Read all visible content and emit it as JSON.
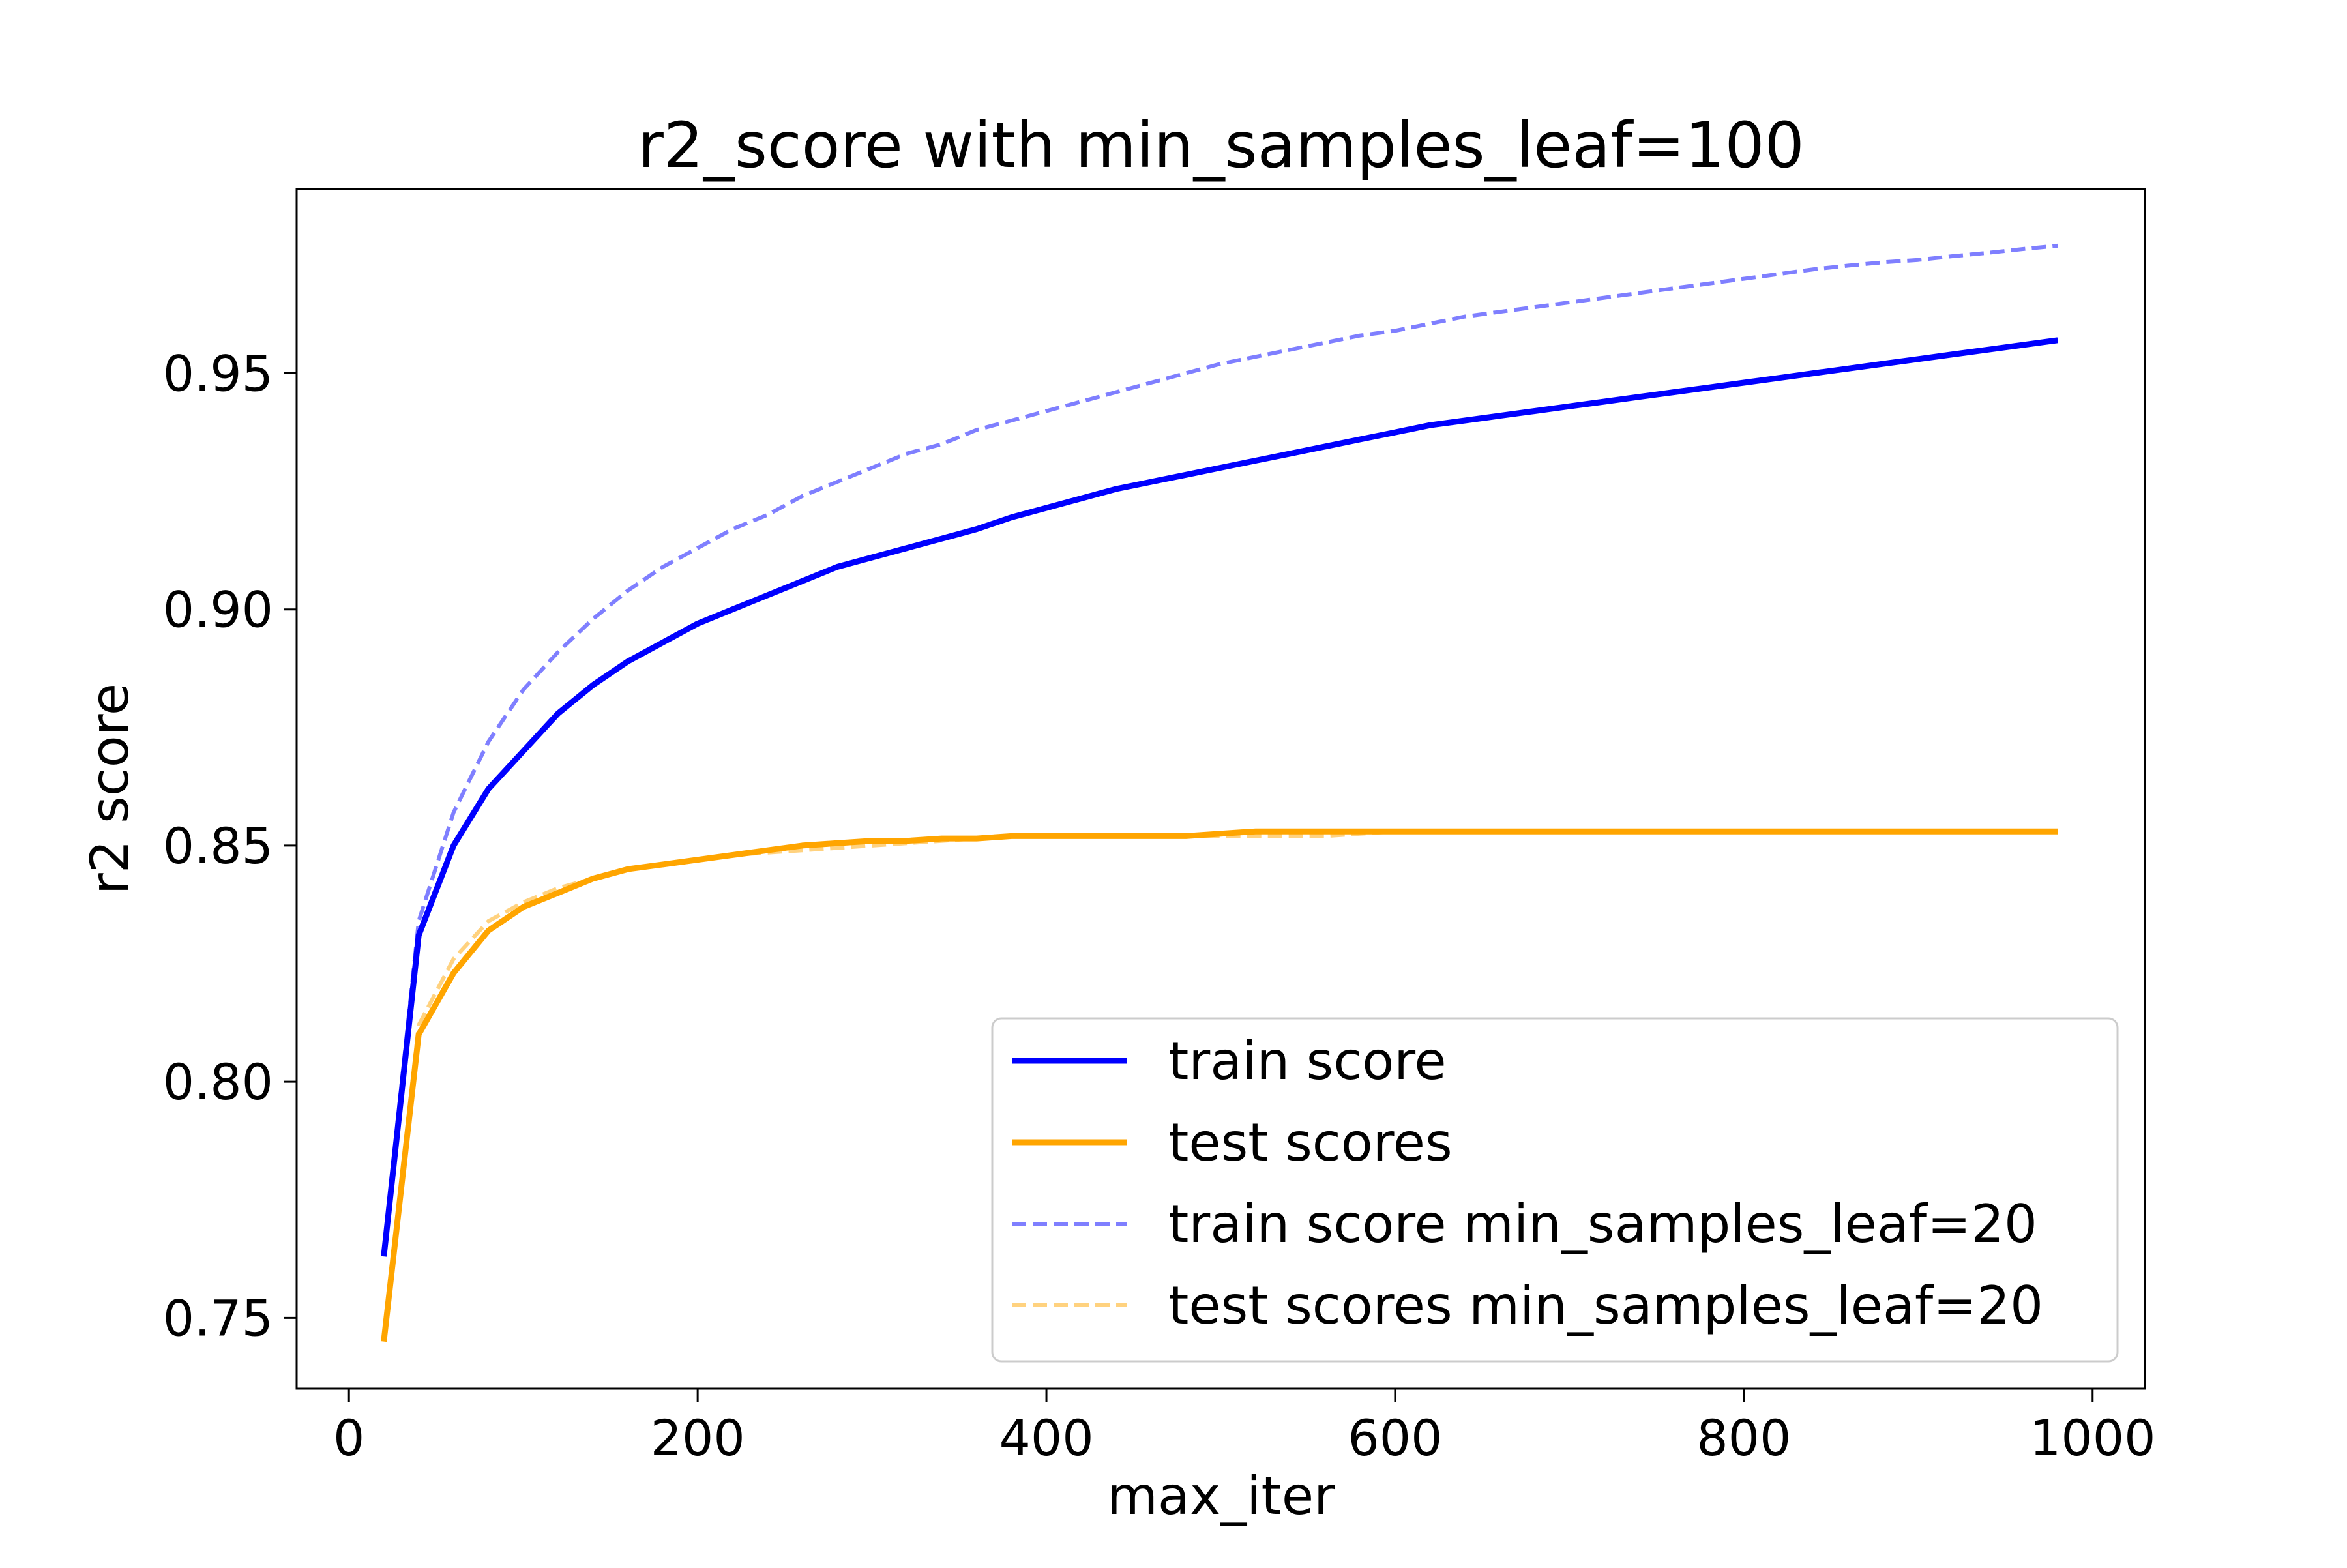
{
  "chart_data": {
    "type": "line",
    "title": "r2_score with min_samples_leaf=100",
    "xlabel": "max_iter",
    "ylabel": "r2 score",
    "xlim": [
      -30,
      1030
    ],
    "ylim": [
      0.735,
      0.989
    ],
    "xticks": [
      0,
      200,
      400,
      600,
      800,
      1000
    ],
    "xtick_labels": [
      "0",
      "200",
      "400",
      "600",
      "800",
      "1000"
    ],
    "yticks": [
      0.75,
      0.8,
      0.85,
      0.9,
      0.95
    ],
    "ytick_labels": [
      "0.75",
      "0.80",
      "0.85",
      "0.90",
      "0.95"
    ],
    "grid": false,
    "legend_position": "lower-right",
    "x": [
      20,
      40,
      60,
      80,
      100,
      120,
      140,
      160,
      180,
      200,
      220,
      240,
      260,
      280,
      300,
      320,
      340,
      360,
      380,
      400,
      420,
      440,
      460,
      480,
      500,
      520,
      540,
      560,
      580,
      600,
      620,
      640,
      660,
      680,
      700,
      720,
      740,
      760,
      780,
      800,
      820,
      840,
      860,
      880,
      900,
      920,
      940,
      960,
      980
    ],
    "series": [
      {
        "name": "train score",
        "color": "#0000ff",
        "style": "solid",
        "values": [
          0.763,
          0.831,
          0.85,
          0.862,
          0.87,
          0.878,
          0.884,
          0.889,
          0.893,
          0.897,
          0.9,
          0.903,
          0.906,
          0.909,
          0.911,
          0.913,
          0.915,
          0.917,
          0.9195,
          0.9215,
          0.9235,
          0.9255,
          0.927,
          0.9285,
          0.93,
          0.9315,
          0.933,
          0.9345,
          0.936,
          0.9375,
          0.939,
          0.94,
          0.941,
          0.942,
          0.943,
          0.944,
          0.945,
          0.946,
          0.947,
          0.948,
          0.949,
          0.95,
          0.951,
          0.952,
          0.953,
          0.954,
          0.955,
          0.956,
          0.957
        ]
      },
      {
        "name": "test scores",
        "color": "#ffa500",
        "style": "solid",
        "values": [
          0.745,
          0.81,
          0.823,
          0.832,
          0.837,
          0.84,
          0.843,
          0.845,
          0.846,
          0.847,
          0.848,
          0.849,
          0.85,
          0.8505,
          0.851,
          0.851,
          0.8515,
          0.8515,
          0.852,
          0.852,
          0.852,
          0.852,
          0.852,
          0.852,
          0.8525,
          0.853,
          0.853,
          0.853,
          0.853,
          0.853,
          0.853,
          0.853,
          0.853,
          0.853,
          0.853,
          0.853,
          0.853,
          0.853,
          0.853,
          0.853,
          0.853,
          0.853,
          0.853,
          0.853,
          0.853,
          0.853,
          0.853,
          0.853,
          0.853
        ]
      },
      {
        "name": "train score min_samples_leaf=20",
        "color": "#0000ff",
        "style": "dashed",
        "opacity": 0.5,
        "values": [
          0.764,
          0.834,
          0.857,
          0.872,
          0.883,
          0.891,
          0.898,
          0.904,
          0.909,
          0.913,
          0.917,
          0.92,
          0.924,
          0.927,
          0.93,
          0.933,
          0.935,
          0.938,
          0.94,
          0.942,
          0.944,
          0.946,
          0.948,
          0.95,
          0.952,
          0.9535,
          0.955,
          0.9565,
          0.958,
          0.959,
          0.9605,
          0.962,
          0.963,
          0.964,
          0.965,
          0.966,
          0.967,
          0.968,
          0.969,
          0.97,
          0.971,
          0.972,
          0.9728,
          0.9735,
          0.974,
          0.9748,
          0.9755,
          0.9763,
          0.977
        ]
      },
      {
        "name": "test scores min_samples_leaf=20",
        "color": "#ffa500",
        "style": "dashed",
        "opacity": 0.5,
        "values": [
          0.746,
          0.812,
          0.826,
          0.834,
          0.838,
          0.841,
          0.843,
          0.845,
          0.846,
          0.847,
          0.848,
          0.8485,
          0.849,
          0.8495,
          0.85,
          0.8505,
          0.851,
          0.8515,
          0.852,
          0.852,
          0.852,
          0.852,
          0.852,
          0.852,
          0.852,
          0.852,
          0.852,
          0.852,
          0.8525,
          0.853,
          0.853,
          0.853,
          0.853,
          0.853,
          0.853,
          0.853,
          0.853,
          0.853,
          0.853,
          0.853,
          0.853,
          0.853,
          0.853,
          0.853,
          0.853,
          0.853,
          0.853,
          0.853,
          0.853
        ]
      }
    ]
  }
}
